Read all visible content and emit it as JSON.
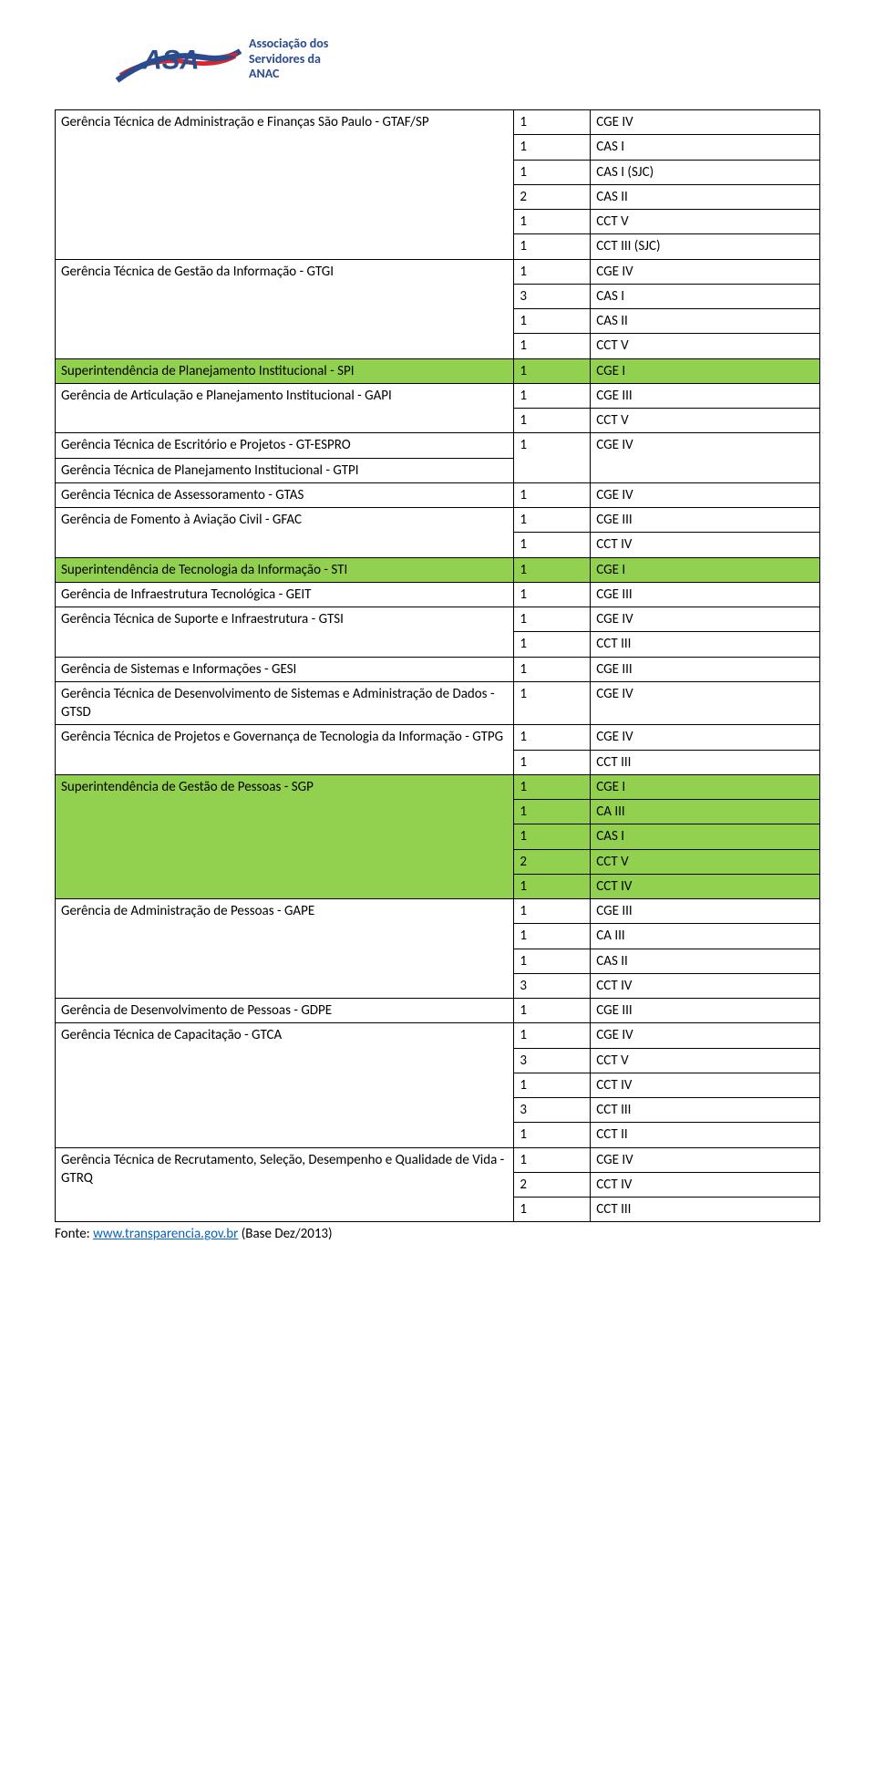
{
  "logo": {
    "acronym": "ASA",
    "fulltext": "Associação dos\nServidores da\nANAC",
    "colors": {
      "blue": "#2a4b8d",
      "red": "#d9262d",
      "highlight": "#92d050"
    }
  },
  "table": {
    "rows": [
      {
        "name": "Gerência Técnica de Administração e Finanças São Paulo - GTAF/SP",
        "name_rowspan": 5,
        "cells": [
          [
            "1",
            "CGE IV"
          ],
          [
            "1",
            "CAS I"
          ],
          [
            "1",
            "CAS I (SJC)"
          ],
          [
            "2",
            "CAS II"
          ],
          [
            "1",
            "CCT V"
          ]
        ],
        "hl": false
      },
      {
        "name": "",
        "name_rowspan": 0,
        "cells": [
          [
            "1",
            "CCT III (SJC)"
          ]
        ],
        "hl": false,
        "name_omit": true,
        "prev_merge": true
      },
      {
        "name": "Gerência Técnica de Gestão da Informação - GTGI",
        "name_rowspan": 4,
        "cells": [
          [
            "1",
            "CGE IV"
          ],
          [
            "3",
            "CAS I"
          ],
          [
            "1",
            "CAS II"
          ],
          [
            "1",
            "CCT V"
          ]
        ],
        "hl": false
      },
      {
        "name": "Superintendência de Planejamento Institucional - SPI",
        "name_rowspan": 1,
        "cells": [
          [
            "1",
            "CGE I"
          ]
        ],
        "hl": true
      },
      {
        "name": "Gerência de Articulação e Planejamento Institucional - GAPI",
        "name_rowspan": 2,
        "cells": [
          [
            "1",
            "CGE III"
          ],
          [
            "1",
            "CCT V"
          ]
        ],
        "hl": false
      },
      {
        "name": "Gerência Técnica de Escritório e Projetos - GT-ESPRO",
        "name_rowspan": 1,
        "cells": [
          [
            "1",
            "CGE IV"
          ]
        ],
        "hl": false,
        "share_value_rowspan": 2
      },
      {
        "name": "Gerência Técnica de Planejamento Institucional - GTPI",
        "name_rowspan": 1,
        "cells": [],
        "hl": false,
        "no_value": true
      },
      {
        "name": "Gerência Técnica de Assessoramento - GTAS",
        "name_rowspan": 1,
        "cells": [
          [
            "1",
            "CGE IV"
          ]
        ],
        "hl": false
      },
      {
        "name": "Gerência de Fomento à Aviação Civil - GFAC",
        "name_rowspan": 2,
        "cells": [
          [
            "1",
            "CGE III"
          ],
          [
            "1",
            "CCT IV"
          ]
        ],
        "hl": false
      },
      {
        "name": "Superintendência de Tecnologia da Informação - STI",
        "name_rowspan": 1,
        "cells": [
          [
            "1",
            "CGE I"
          ]
        ],
        "hl": true
      },
      {
        "name": "Gerência de Infraestrutura Tecnológica - GEIT",
        "name_rowspan": 1,
        "cells": [
          [
            "1",
            "CGE III"
          ]
        ],
        "hl": false
      },
      {
        "name": "Gerência Técnica de Suporte e Infraestrutura - GTSI",
        "name_rowspan": 2,
        "cells": [
          [
            "1",
            "CGE IV"
          ],
          [
            "1",
            "CCT III"
          ]
        ],
        "hl": false
      },
      {
        "name": "Gerência de Sistemas e Informações - GESI",
        "name_rowspan": 1,
        "cells": [
          [
            "1",
            "CGE III"
          ]
        ],
        "hl": false
      },
      {
        "name": "Gerência Técnica de Desenvolvimento de Sistemas e Administração de Dados - GTSD",
        "name_rowspan": 1,
        "cells": [
          [
            "1",
            "CGE IV"
          ]
        ],
        "hl": false
      },
      {
        "name": "Gerência Técnica de Projetos e Governança de Tecnologia da Informação - GTPG",
        "name_rowspan": 2,
        "cells": [
          [
            "1",
            "CGE IV"
          ],
          [
            "1",
            "CCT III"
          ]
        ],
        "hl": false
      },
      {
        "name": "Superintendência de Gestão de Pessoas - SGP",
        "name_rowspan": 5,
        "cells": [
          [
            "1",
            "CGE I"
          ],
          [
            "1",
            "CA III"
          ],
          [
            "1",
            "CAS I"
          ],
          [
            "2",
            "CCT V"
          ],
          [
            "1",
            "CCT IV"
          ]
        ],
        "hl": true
      },
      {
        "name": "Gerência de Administração de Pessoas - GAPE",
        "name_rowspan": 4,
        "cells": [
          [
            "1",
            "CGE III"
          ],
          [
            "1",
            "CA III"
          ],
          [
            "1",
            "CAS II"
          ],
          [
            "3",
            "CCT IV"
          ]
        ],
        "hl": false
      },
      {
        "name": "Gerência de Desenvolvimento de Pessoas - GDPE",
        "name_rowspan": 1,
        "cells": [
          [
            "1",
            "CGE III"
          ]
        ],
        "hl": false
      },
      {
        "name": "Gerência Técnica de Capacitação - GTCA",
        "name_rowspan": 5,
        "cells": [
          [
            "1",
            "CGE IV"
          ],
          [
            "3",
            "CCT V"
          ],
          [
            "1",
            "CCT IV"
          ],
          [
            "3",
            "CCT III"
          ],
          [
            "1",
            "CCT II"
          ]
        ],
        "hl": false
      },
      {
        "name": "Gerência Técnica de Recrutamento, Seleção, Desempenho e Qualidade de Vida - GTRQ",
        "name_rowspan": 3,
        "cells": [
          [
            "1",
            "CGE IV"
          ],
          [
            "2",
            "CCT IV"
          ],
          [
            "1",
            "CCT III"
          ]
        ],
        "hl": false
      }
    ]
  },
  "footer": {
    "prefix": "Fonte: ",
    "linktext": "www.transparencia.gov.br",
    "suffix": " (Base Dez/2013)"
  }
}
